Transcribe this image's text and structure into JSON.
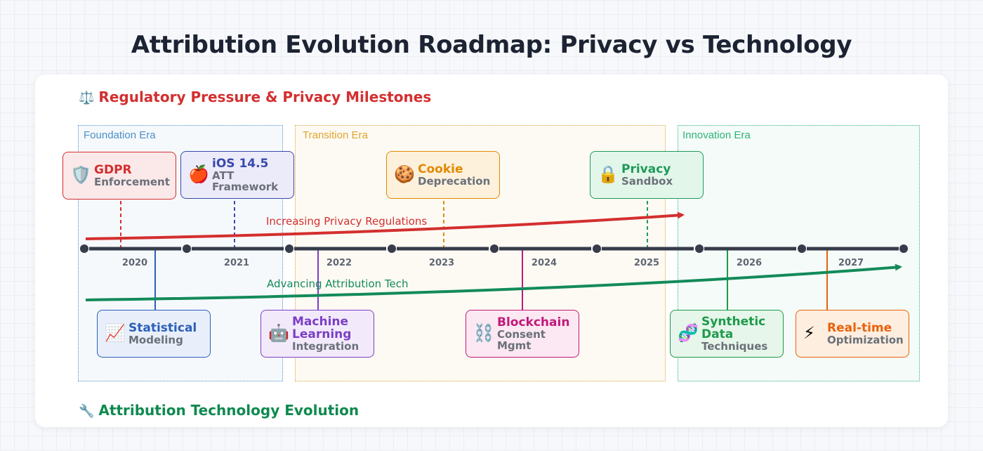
{
  "title": "Attribution Evolution Roadmap: Privacy vs Technology",
  "sections": {
    "privacy": {
      "icon": "⚖️",
      "label": "Regulatory Pressure & Privacy Milestones",
      "color": "#d32f2f"
    },
    "tech": {
      "icon": "🔧",
      "label": "Attribution Technology Evolution",
      "color": "#0f8a4f"
    }
  },
  "eras": [
    {
      "label": "Foundation Era",
      "color": "#4a90c8"
    },
    {
      "label": "Transition Era",
      "color": "#e0a42e"
    },
    {
      "label": "Innovation Era",
      "color": "#2fb37a"
    }
  ],
  "years": [
    "2020",
    "2021",
    "2022",
    "2023",
    "2024",
    "2025",
    "2026",
    "2027"
  ],
  "trends": {
    "privacy": {
      "label": "Increasing Privacy Regulations",
      "color": "#d32f2f"
    },
    "tech": {
      "label": "Advancing Attribution Tech",
      "color": "#138a5a"
    }
  },
  "privacy_events": [
    {
      "icon": "🛡️",
      "title": "GDPR",
      "sub": "Enforcement",
      "color": "#d32f2f",
      "bg": "#fbe9ea"
    },
    {
      "icon": "🍎",
      "title": "iOS 14.5",
      "sub": "ATT\nFramework",
      "color": "#3949ab",
      "bg": "#ecebfa"
    },
    {
      "icon": "🍪",
      "title": "Cookie",
      "sub": "Deprecation",
      "color": "#e08a00",
      "bg": "#fdf1dc"
    },
    {
      "icon": "🔒",
      "title": "Privacy",
      "sub": "Sandbox",
      "color": "#1e9a5a",
      "bg": "#e3f6ea"
    }
  ],
  "tech_events": [
    {
      "icon": "📈",
      "title": "Statistical",
      "sub": "Modeling",
      "color": "#2b5fb8",
      "bg": "#e8effb"
    },
    {
      "icon": "🤖",
      "title": "Machine\nLearning",
      "sub": "Integration",
      "color": "#7b3fc4",
      "bg": "#f2eafb"
    },
    {
      "icon": "⛓️",
      "title": "Blockchain",
      "sub": "Consent\nMgmt",
      "color": "#c2187a",
      "bg": "#fbe8f2"
    },
    {
      "icon": "🧬",
      "title": "Synthetic\nData",
      "sub": "Techniques",
      "color": "#1e9a4a",
      "bg": "#e6f6ea"
    },
    {
      "icon": "⚡",
      "title": "Real-time",
      "sub": "Optimization",
      "color": "#e8620c",
      "bg": "#fdeedf"
    }
  ]
}
